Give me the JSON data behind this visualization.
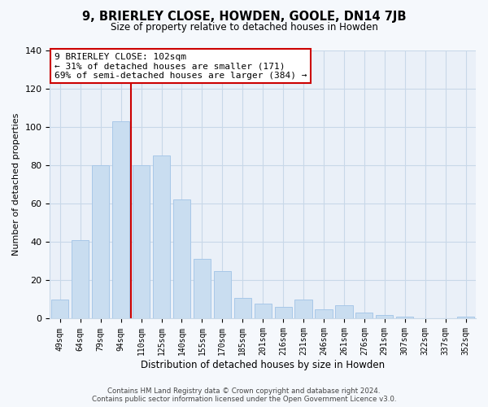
{
  "title": "9, BRIERLEY CLOSE, HOWDEN, GOOLE, DN14 7JB",
  "subtitle": "Size of property relative to detached houses in Howden",
  "xlabel": "Distribution of detached houses by size in Howden",
  "ylabel": "Number of detached properties",
  "bar_labels": [
    "49sqm",
    "64sqm",
    "79sqm",
    "94sqm",
    "110sqm",
    "125sqm",
    "140sqm",
    "155sqm",
    "170sqm",
    "185sqm",
    "201sqm",
    "216sqm",
    "231sqm",
    "246sqm",
    "261sqm",
    "276sqm",
    "291sqm",
    "307sqm",
    "322sqm",
    "337sqm",
    "352sqm"
  ],
  "bar_values": [
    10,
    41,
    80,
    103,
    80,
    85,
    62,
    31,
    25,
    11,
    8,
    6,
    10,
    5,
    7,
    3,
    2,
    1,
    0,
    0,
    1
  ],
  "bar_color": "#c9ddf0",
  "bar_edge_color": "#a8c8e8",
  "vline_x": 3.5,
  "vline_color": "#cc0000",
  "annotation_line1": "9 BRIERLEY CLOSE: 102sqm",
  "annotation_line2": "← 31% of detached houses are smaller (171)",
  "annotation_line3": "69% of semi-detached houses are larger (384) →",
  "annotation_box_color": "#ffffff",
  "annotation_box_edge": "#cc0000",
  "ylim": [
    0,
    140
  ],
  "yticks": [
    0,
    20,
    40,
    60,
    80,
    100,
    120,
    140
  ],
  "footer_line1": "Contains HM Land Registry data © Crown copyright and database right 2024.",
  "footer_line2": "Contains public sector information licensed under the Open Government Licence v3.0.",
  "bg_color": "#f5f8fc",
  "plot_bg_color": "#eaf0f8",
  "grid_color": "#c8d8e8"
}
